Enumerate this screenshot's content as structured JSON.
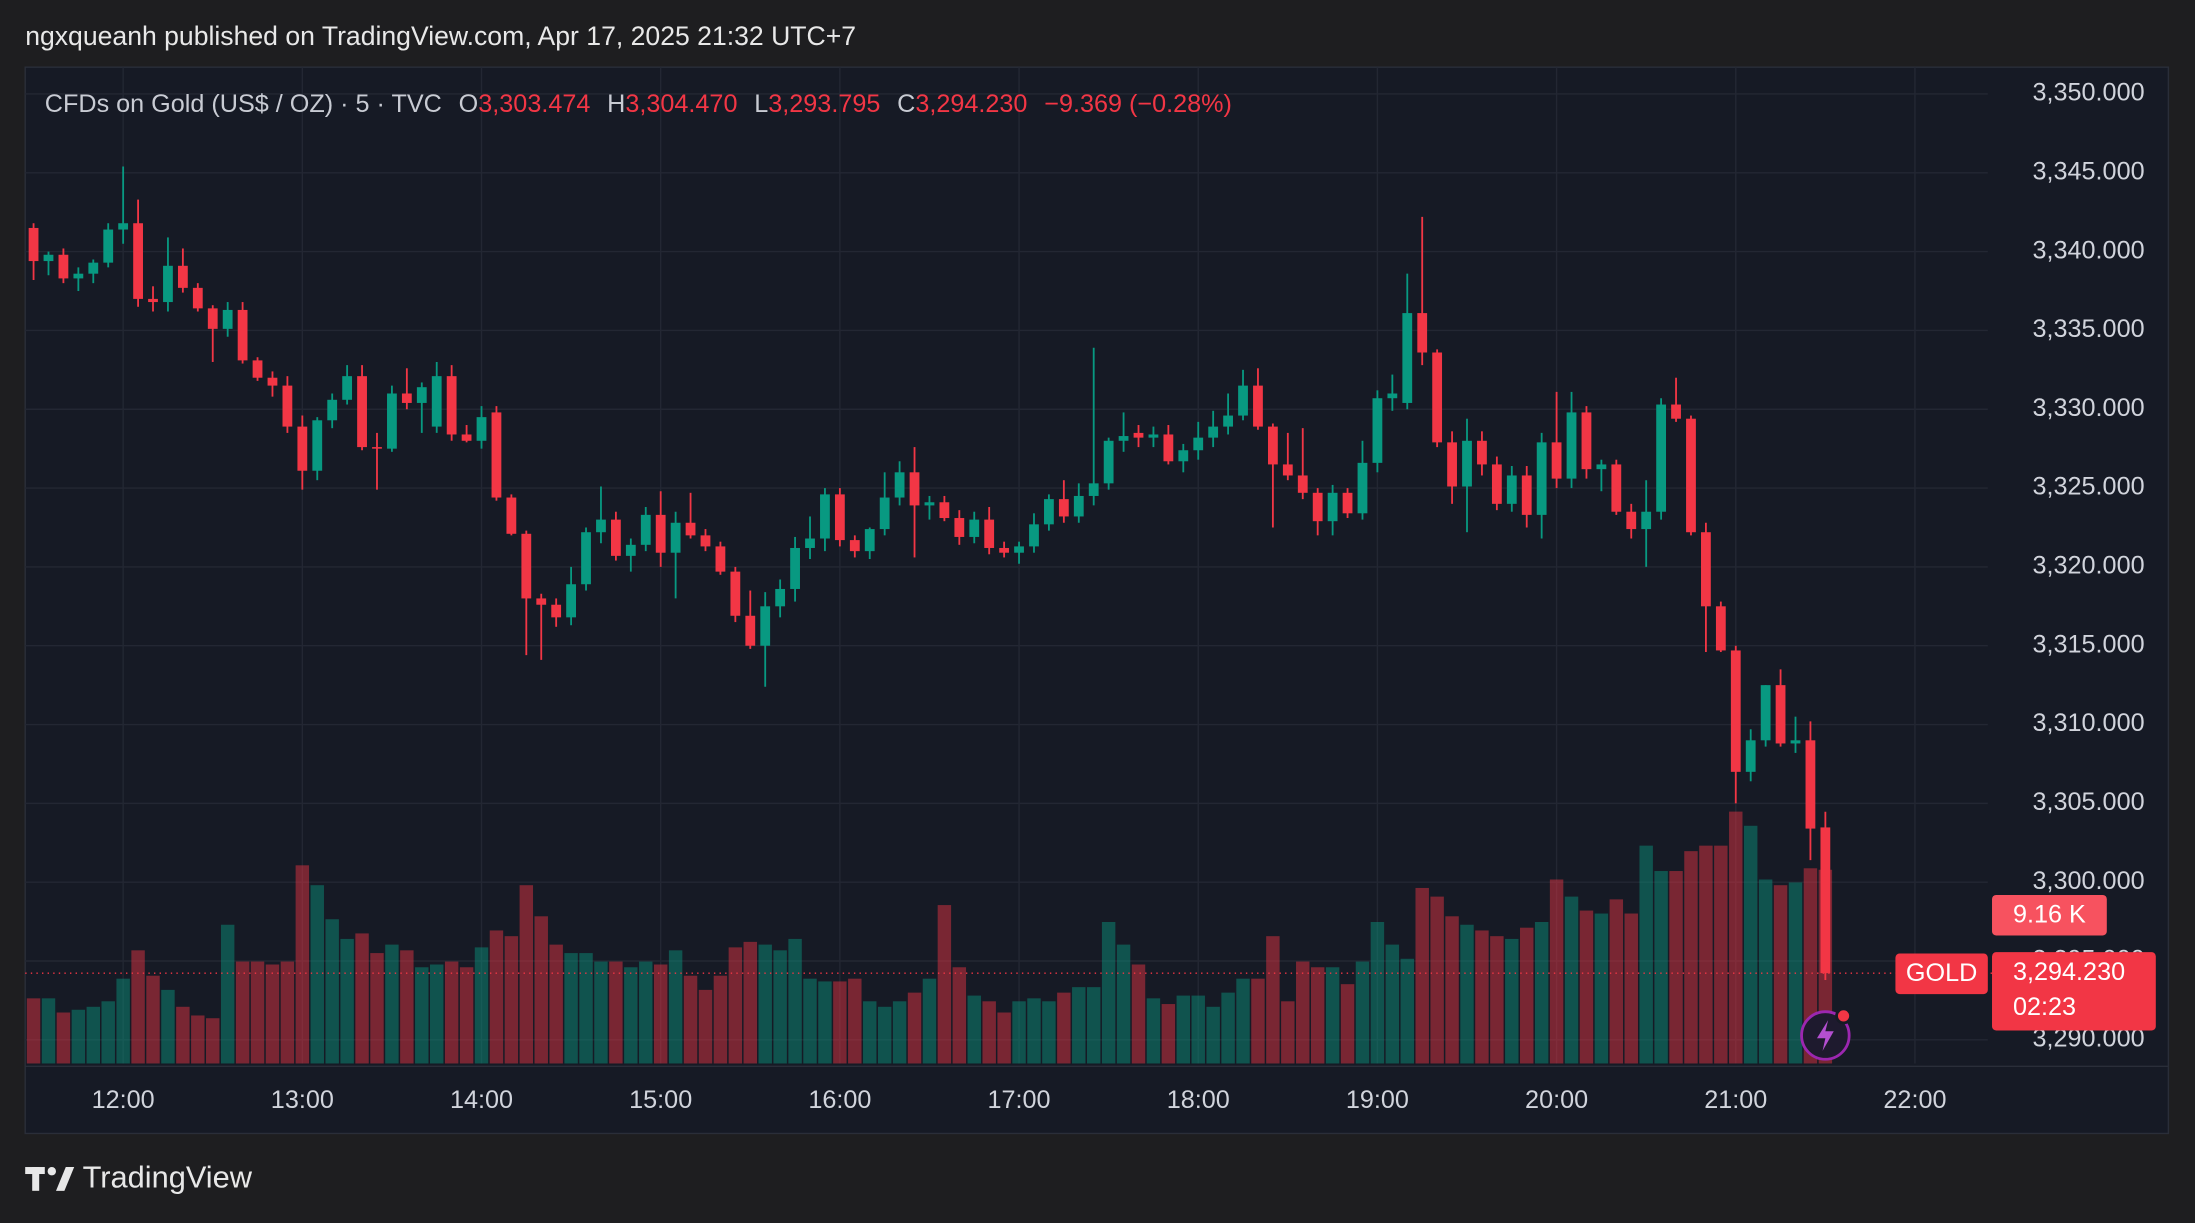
{
  "header": {
    "publisher": "ngxqueanh published on TradingView.com, Apr 17, 2025 21:32 UTC+7"
  },
  "footer": {
    "brand": "TradingView"
  },
  "chart_data": {
    "type": "candlestick",
    "title": "CFDs on Gold (US$ / OZ) · 5 · TVC",
    "legend": [
      {
        "key": "O",
        "value": "3,303.474"
      },
      {
        "key": "H",
        "value": "3,304.470"
      },
      {
        "key": "L",
        "value": "3,293.795"
      },
      {
        "key": "C",
        "value": "3,294.230"
      }
    ],
    "change": "−9.369 (−0.28%)",
    "symbol": "GOLD",
    "countdown": "02:23",
    "volume_label": "9.16 K",
    "up_color": "#089981",
    "down_color": "#f23645",
    "grid": true,
    "x": [
      690,
      695,
      700,
      705,
      710,
      715,
      720,
      725,
      730,
      735,
      740,
      745,
      750,
      755,
      760,
      765,
      770,
      775,
      780,
      785,
      790,
      795,
      800,
      805,
      810,
      815,
      820,
      825,
      830,
      835,
      840,
      845,
      850,
      855,
      860,
      865,
      870,
      875,
      880,
      885,
      890,
      895,
      900,
      905,
      910,
      915,
      920,
      925,
      930,
      935,
      940,
      945,
      950,
      955,
      960,
      965,
      970,
      975,
      980,
      985,
      990,
      995,
      1000,
      1005,
      1010,
      1015,
      1020,
      1025,
      1030,
      1035,
      1040,
      1045,
      1050,
      1055,
      1060,
      1065,
      1070,
      1075,
      1080,
      1085,
      1090,
      1095,
      1100,
      1105,
      1110,
      1115,
      1120,
      1125,
      1130,
      1135,
      1140,
      1145,
      1150,
      1155,
      1160,
      1165,
      1170,
      1175,
      1180,
      1185,
      1190,
      1195,
      1200,
      1205,
      1210,
      1215,
      1220,
      1225,
      1230,
      1235,
      1240,
      1245,
      1250,
      1255,
      1260,
      1265,
      1270,
      1275,
      1280,
      1285,
      1290
    ],
    "open": [
      3341.5,
      3339.4,
      3339.8,
      3338.3,
      3338.6,
      3339.3,
      3341.4,
      3341.8,
      3337.0,
      3336.8,
      3339.1,
      3337.7,
      3336.4,
      3335.1,
      3336.3,
      3333.1,
      3332.0,
      3331.5,
      3328.9,
      3326.1,
      3329.3,
      3330.6,
      3332.1,
      3327.6,
      3327.5,
      3331.0,
      3330.4,
      3328.9,
      3332.1,
      3328.4,
      3328.0,
      3329.8,
      3324.4,
      3322.1,
      3318.0,
      3317.6,
      3316.8,
      3318.9,
      3322.2,
      3323.0,
      3320.7,
      3321.4,
      3323.3,
      3320.9,
      3322.8,
      3322.0,
      3321.3,
      3319.7,
      3316.9,
      3315.0,
      3317.5,
      3318.6,
      3321.2,
      3321.8,
      3324.6,
      3321.7,
      3321.0,
      3322.4,
      3324.4,
      3326.0,
      3323.9,
      3324.1,
      3323.1,
      3321.9,
      3323.0,
      3321.2,
      3320.9,
      3321.3,
      3322.7,
      3324.3,
      3323.2,
      3324.5,
      3325.3,
      3328.0,
      3328.5,
      3328.2,
      3328.4,
      3326.7,
      3327.4,
      3328.2,
      3328.9,
      3329.6,
      3331.5,
      3328.9,
      3326.5,
      3325.8,
      3324.7,
      3322.9,
      3324.7,
      3323.4,
      3326.6,
      3330.7,
      3330.4,
      3336.1,
      3333.6,
      3327.9,
      3325.1,
      3328.0,
      3326.5,
      3324.0,
      3325.8,
      3323.3,
      3327.9,
      3325.6,
      3329.8,
      3326.2,
      3326.5,
      3323.5,
      3322.4,
      3323.5,
      3330.3,
      3329.4,
      3322.2,
      3317.5,
      3314.7,
      3307.0,
      3309.0,
      3312.5,
      3308.8,
      3309.0,
      3303.474
    ],
    "high": [
      3341.8,
      3340.0,
      3340.2,
      3339.0,
      3339.5,
      3341.8,
      3345.4,
      3343.3,
      3337.8,
      3340.9,
      3340.2,
      3338.0,
      3336.6,
      3336.8,
      3336.8,
      3333.3,
      3332.4,
      3332.1,
      3329.6,
      3329.5,
      3331.0,
      3332.8,
      3332.8,
      3328.5,
      3331.5,
      3332.6,
      3331.7,
      3333.0,
      3332.8,
      3329.0,
      3330.2,
      3330.2,
      3324.6,
      3322.3,
      3318.3,
      3318.0,
      3320.0,
      3322.5,
      3325.1,
      3323.5,
      3321.8,
      3323.8,
      3324.8,
      3323.5,
      3324.7,
      3322.4,
      3321.6,
      3320.0,
      3318.5,
      3318.4,
      3319.2,
      3321.9,
      3323.2,
      3325.0,
      3325.0,
      3322.0,
      3322.5,
      3326.0,
      3326.7,
      3327.6,
      3324.5,
      3324.5,
      3323.6,
      3323.5,
      3323.8,
      3321.6,
      3321.6,
      3323.4,
      3324.6,
      3325.5,
      3325.3,
      3333.9,
      3328.2,
      3329.8,
      3329.0,
      3328.9,
      3329.0,
      3327.8,
      3329.2,
      3329.9,
      3331.0,
      3332.5,
      3332.6,
      3329.1,
      3328.5,
      3328.8,
      3325.0,
      3325.2,
      3325.0,
      3328.0,
      3331.2,
      3332.2,
      3338.6,
      3342.2,
      3333.8,
      3328.6,
      3329.4,
      3328.6,
      3327.0,
      3326.4,
      3326.4,
      3328.5,
      3331.1,
      3331.1,
      3330.2,
      3326.8,
      3326.8,
      3324.0,
      3325.5,
      3330.7,
      3332.0,
      3329.6,
      3322.8,
      3317.8,
      3315.0,
      3309.7,
      3312.5,
      3313.5,
      3310.5,
      3310.2,
      3304.47
    ],
    "low": [
      3338.2,
      3338.5,
      3338.0,
      3337.5,
      3338.0,
      3339.0,
      3340.5,
      3336.5,
      3336.2,
      3336.2,
      3337.4,
      3336.2,
      3333.0,
      3334.6,
      3332.9,
      3331.8,
      3330.8,
      3328.5,
      3324.9,
      3325.5,
      3328.8,
      3330.3,
      3327.4,
      3324.9,
      3327.3,
      3330.0,
      3328.5,
      3328.5,
      3328.0,
      3327.9,
      3327.5,
      3324.2,
      3322.0,
      3314.4,
      3314.1,
      3316.2,
      3316.3,
      3318.5,
      3321.5,
      3320.4,
      3319.7,
      3321.0,
      3320.0,
      3318.0,
      3321.8,
      3321.0,
      3319.5,
      3316.5,
      3314.8,
      3312.4,
      3316.8,
      3317.8,
      3320.5,
      3321.0,
      3321.3,
      3320.6,
      3320.5,
      3322.0,
      3323.9,
      3320.6,
      3323.0,
      3322.9,
      3321.4,
      3321.5,
      3320.8,
      3320.6,
      3320.2,
      3320.9,
      3322.3,
      3322.8,
      3322.8,
      3323.9,
      3324.9,
      3327.3,
      3327.6,
      3327.6,
      3326.5,
      3326.0,
      3326.8,
      3327.6,
      3328.4,
      3329.3,
      3328.7,
      3322.5,
      3325.5,
      3324.3,
      3322.0,
      3322.0,
      3323.1,
      3323.0,
      3326.0,
      3329.9,
      3330.0,
      3332.8,
      3327.6,
      3324.0,
      3322.2,
      3325.8,
      3323.6,
      3323.5,
      3322.5,
      3321.8,
      3325.0,
      3325.0,
      3325.6,
      3324.8,
      3323.3,
      3321.8,
      3320.0,
      3323.0,
      3329.2,
      3322.0,
      3314.6,
      3314.6,
      3305.0,
      3306.4,
      3308.6,
      3308.6,
      3308.2,
      3301.4,
      3293.795
    ],
    "close": [
      3339.4,
      3339.8,
      3338.3,
      3338.6,
      3339.3,
      3341.4,
      3341.8,
      3337.0,
      3336.8,
      3339.1,
      3337.7,
      3336.4,
      3335.1,
      3336.3,
      3333.1,
      3332.0,
      3331.5,
      3328.9,
      3326.1,
      3329.3,
      3330.6,
      3332.1,
      3327.6,
      3327.5,
      3331.0,
      3330.4,
      3331.4,
      3332.1,
      3328.4,
      3328.0,
      3329.5,
      3324.4,
      3322.1,
      3318.0,
      3317.6,
      3316.8,
      3318.9,
      3322.2,
      3323.0,
      3320.7,
      3321.4,
      3323.3,
      3320.9,
      3322.8,
      3322.0,
      3321.3,
      3319.7,
      3316.9,
      3315.0,
      3317.5,
      3318.6,
      3321.2,
      3321.8,
      3324.6,
      3321.7,
      3321.0,
      3322.4,
      3324.4,
      3326.0,
      3323.9,
      3324.1,
      3323.1,
      3321.9,
      3323.0,
      3321.2,
      3320.9,
      3321.3,
      3322.7,
      3324.3,
      3323.2,
      3324.5,
      3325.3,
      3328.0,
      3328.3,
      3328.2,
      3328.4,
      3326.7,
      3327.4,
      3328.2,
      3328.9,
      3329.6,
      3331.5,
      3328.9,
      3326.5,
      3325.8,
      3324.7,
      3322.9,
      3324.7,
      3323.4,
      3326.6,
      3330.7,
      3331.0,
      3336.1,
      3333.6,
      3327.9,
      3325.1,
      3328.0,
      3326.5,
      3324.0,
      3325.8,
      3323.3,
      3327.9,
      3325.6,
      3329.8,
      3326.2,
      3326.5,
      3323.5,
      3322.4,
      3323.5,
      3330.3,
      3329.4,
      3322.2,
      3317.5,
      3314.7,
      3307.0,
      3309.0,
      3312.5,
      3308.8,
      3309.0,
      3303.4,
      3294.23
    ],
    "volume": [
      3.08,
      3.08,
      2.41,
      2.54,
      2.68,
      2.94,
      4.01,
      5.35,
      4.15,
      3.48,
      2.68,
      2.27,
      2.14,
      6.56,
      4.82,
      4.82,
      4.68,
      4.82,
      9.37,
      8.43,
      6.82,
      5.89,
      6.15,
      5.22,
      5.62,
      5.35,
      4.55,
      4.68,
      4.82,
      4.55,
      5.49,
      6.29,
      6.02,
      8.43,
      6.96,
      5.62,
      5.22,
      5.22,
      4.82,
      4.82,
      4.55,
      4.82,
      4.68,
      5.35,
      4.15,
      3.48,
      4.15,
      5.49,
      5.75,
      5.62,
      5.35,
      5.89,
      4.01,
      3.88,
      3.88,
      4.01,
      2.94,
      2.68,
      2.94,
      3.35,
      4.01,
      7.49,
      4.55,
      3.21,
      2.94,
      2.41,
      2.94,
      3.08,
      2.94,
      3.35,
      3.61,
      3.61,
      6.69,
      5.62,
      4.68,
      3.08,
      2.81,
      3.21,
      3.21,
      2.68,
      3.35,
      4.01,
      4.01,
      6.02,
      2.94,
      4.82,
      4.55,
      4.55,
      3.75,
      4.82,
      6.69,
      5.62,
      4.95,
      8.3,
      7.89,
      6.96,
      6.56,
      6.29,
      6.02,
      5.89,
      6.42,
      6.69,
      8.7,
      7.89,
      7.23,
      7.09,
      7.76,
      7.09,
      10.3,
      9.1,
      9.1,
      10.04,
      10.3,
      10.3,
      11.91,
      11.24,
      8.7,
      8.43,
      8.56,
      9.23,
      9.16
    ],
    "xlim": [
      687.2,
      1344.4
    ],
    "xticks": [
      {
        "value": 720,
        "label": "12:00"
      },
      {
        "value": 780,
        "label": "13:00"
      },
      {
        "value": 840,
        "label": "14:00"
      },
      {
        "value": 900,
        "label": "15:00"
      },
      {
        "value": 960,
        "label": "16:00"
      },
      {
        "value": 1020,
        "label": "17:00"
      },
      {
        "value": 1080,
        "label": "18:00"
      },
      {
        "value": 1140,
        "label": "19:00"
      },
      {
        "value": 1200,
        "label": "20:00"
      },
      {
        "value": 1260,
        "label": "21:00"
      },
      {
        "value": 1320,
        "label": "22:00"
      }
    ],
    "ylim": [
      3288.5,
      3351.7
    ],
    "yticks": [
      {
        "value": 3290,
        "label": "3,290.000"
      },
      {
        "value": 3295,
        "label": "3,295.000"
      },
      {
        "value": 3300,
        "label": "3,300.000"
      },
      {
        "value": 3305,
        "label": "3,305.000"
      },
      {
        "value": 3310,
        "label": "3,310.000"
      },
      {
        "value": 3315,
        "label": "3,315.000"
      },
      {
        "value": 3320,
        "label": "3,320.000"
      },
      {
        "value": 3325,
        "label": "3,325.000"
      },
      {
        "value": 3330,
        "label": "3,330.000"
      },
      {
        "value": 3335,
        "label": "3,335.000"
      },
      {
        "value": 3340,
        "label": "3,340.000"
      },
      {
        "value": 3345,
        "label": "3,345.000"
      },
      {
        "value": 3350,
        "label": "3,350.000"
      }
    ]
  }
}
